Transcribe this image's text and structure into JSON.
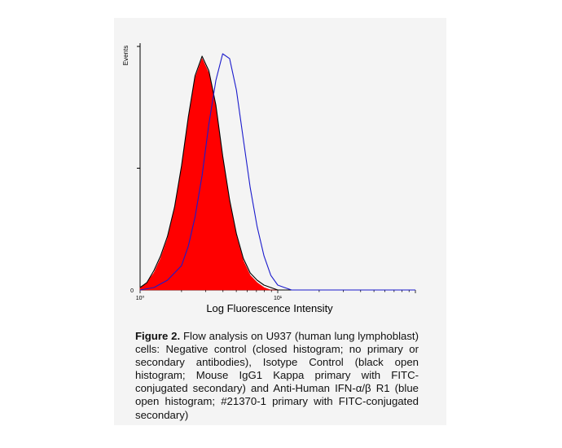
{
  "chart_data": {
    "type": "area",
    "ylabel": "Events",
    "xlabel": "Log Fluorescence Intensity",
    "x_scale": "log",
    "x_ticks": [
      {
        "value": 1,
        "label": "10⁰"
      },
      {
        "value": 10,
        "label": "10¹"
      }
    ],
    "y_ticks": [
      {
        "value": 0,
        "label": "0"
      }
    ],
    "xlim": [
      1,
      100
    ],
    "ylim": [
      0,
      100
    ],
    "series": [
      {
        "style": "closed",
        "color": "#ff0000",
        "points": [
          [
            1.0,
            1
          ],
          [
            1.12,
            3
          ],
          [
            1.26,
            7
          ],
          [
            1.41,
            13
          ],
          [
            1.58,
            21
          ],
          [
            1.78,
            33
          ],
          [
            2.0,
            50
          ],
          [
            2.24,
            70
          ],
          [
            2.51,
            87
          ],
          [
            2.82,
            95
          ],
          [
            3.16,
            89
          ],
          [
            3.55,
            75
          ],
          [
            3.98,
            54
          ],
          [
            4.47,
            36
          ],
          [
            5.01,
            22
          ],
          [
            5.62,
            12
          ],
          [
            6.31,
            6
          ],
          [
            7.08,
            3
          ],
          [
            7.94,
            1
          ],
          [
            8.91,
            0
          ],
          [
            10.0,
            0
          ]
        ]
      },
      {
        "style": "open",
        "color": "#000000",
        "points": [
          [
            1.0,
            1
          ],
          [
            1.12,
            3
          ],
          [
            1.26,
            8
          ],
          [
            1.41,
            14
          ],
          [
            1.58,
            22
          ],
          [
            1.78,
            34
          ],
          [
            2.0,
            51
          ],
          [
            2.24,
            71
          ],
          [
            2.51,
            88
          ],
          [
            2.82,
            96
          ],
          [
            3.16,
            90
          ],
          [
            3.55,
            76
          ],
          [
            3.98,
            55
          ],
          [
            4.47,
            37
          ],
          [
            5.01,
            23
          ],
          [
            5.62,
            13
          ],
          [
            6.31,
            7
          ],
          [
            7.08,
            4
          ],
          [
            7.94,
            2
          ],
          [
            8.91,
            1
          ],
          [
            10.0,
            0
          ]
        ]
      },
      {
        "style": "open",
        "color": "#1a1acc",
        "points": [
          [
            1.0,
            0
          ],
          [
            1.26,
            1
          ],
          [
            1.58,
            4
          ],
          [
            2.0,
            10
          ],
          [
            2.24,
            18
          ],
          [
            2.51,
            30
          ],
          [
            2.82,
            47
          ],
          [
            3.16,
            68
          ],
          [
            3.55,
            86
          ],
          [
            3.98,
            97
          ],
          [
            4.47,
            95
          ],
          [
            5.01,
            82
          ],
          [
            5.62,
            62
          ],
          [
            6.31,
            42
          ],
          [
            7.08,
            26
          ],
          [
            7.94,
            14
          ],
          [
            8.91,
            6
          ],
          [
            10.0,
            2
          ],
          [
            11.2,
            1
          ],
          [
            12.6,
            0
          ],
          [
            20.0,
            0
          ],
          [
            40.0,
            0
          ],
          [
            100,
            0
          ]
        ]
      }
    ]
  },
  "caption": {
    "figure_label": "Figure 2.",
    "text": "Flow analysis on U937 (human lung lymphoblast) cells: Negative control (closed histogram; no primary or secondary antibodies), Isotype Control (black open histogram; Mouse IgG1 Kappa primary with FITC-conjugated secondary) and Anti-Human IFN-α/β R1 (blue open histogram; #21370-1 primary with FITC-conjugated secondary)"
  }
}
